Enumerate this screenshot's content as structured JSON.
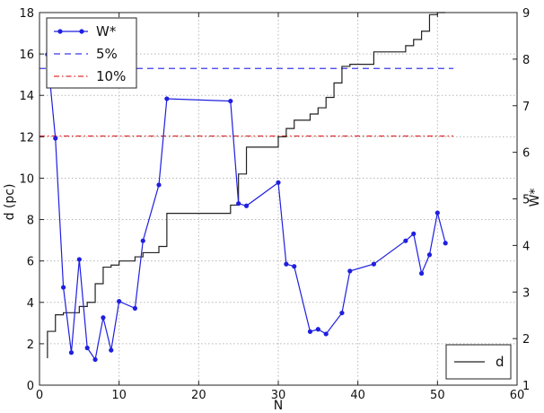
{
  "chart_data": {
    "type": "line",
    "xlabel": "N",
    "ylabel": "d (pc)",
    "y2label": "W*",
    "xlim": [
      0,
      60
    ],
    "ylim": [
      0,
      18
    ],
    "y2lim": [
      1,
      9
    ],
    "xticks": [
      0,
      10,
      20,
      30,
      40,
      50,
      60
    ],
    "yticks": [
      0,
      2,
      4,
      6,
      8,
      10,
      12,
      14,
      16,
      18
    ],
    "y2ticks": [
      1,
      2,
      3,
      4,
      5,
      6,
      7,
      8,
      9
    ],
    "grid": true,
    "series": [
      {
        "name": "W*",
        "axis": "right",
        "style": "line-markers",
        "color": "#1f1fe0",
        "x": [
          1,
          2,
          3,
          4,
          5,
          6,
          7,
          8,
          9,
          10,
          12,
          13,
          15,
          16,
          24,
          25,
          26,
          30,
          31,
          32,
          34,
          35,
          36,
          38,
          39,
          42,
          46,
          47,
          48,
          49,
          50,
          51
        ],
        "y": [
          8.1,
          6.3,
          3.1,
          1.7,
          3.7,
          1.8,
          1.55,
          2.45,
          1.75,
          2.8,
          2.65,
          4.1,
          5.3,
          7.15,
          7.1,
          4.9,
          4.85,
          5.35,
          3.6,
          3.55,
          2.15,
          2.2,
          2.1,
          2.55,
          3.45,
          3.6,
          4.1,
          4.25,
          3.4,
          3.8,
          4.7,
          4.05
        ]
      },
      {
        "name": "5%",
        "axis": "right",
        "style": "dashed",
        "color": "#3b3bea",
        "x": [
          0,
          52
        ],
        "y": [
          7.8,
          7.8
        ]
      },
      {
        "name": "10%",
        "axis": "right",
        "style": "dashdot",
        "color": "#e03030",
        "x": [
          0,
          52
        ],
        "y": [
          6.35,
          6.35
        ]
      },
      {
        "name": "d",
        "axis": "left",
        "style": "step",
        "color": "#222222",
        "x": [
          1,
          1,
          2,
          2,
          3,
          3,
          4,
          4,
          5,
          5,
          6,
          6,
          7,
          7,
          8,
          8,
          9,
          9,
          10,
          10,
          12,
          12,
          13,
          13,
          15,
          15,
          16,
          16,
          24,
          24,
          25,
          25,
          26,
          26,
          30,
          30,
          31,
          31,
          32,
          32,
          34,
          34,
          35,
          35,
          36,
          36,
          37,
          37,
          38,
          38,
          39,
          39,
          42,
          42,
          46,
          46,
          47,
          47,
          48,
          48,
          49,
          49,
          50,
          50,
          51
        ],
        "y": [
          1.3,
          2.6,
          2.6,
          3.4,
          3.4,
          3.5,
          3.5,
          3.5,
          3.5,
          3.8,
          3.8,
          4.0,
          4.0,
          4.9,
          4.9,
          5.7,
          5.7,
          5.8,
          5.8,
          6.0,
          6.0,
          6.2,
          6.2,
          6.4,
          6.4,
          6.7,
          6.7,
          8.3,
          8.3,
          8.7,
          8.7,
          10.2,
          10.2,
          11.5,
          11.5,
          12.0,
          12.0,
          12.4,
          12.4,
          12.8,
          12.8,
          13.1,
          13.1,
          13.4,
          13.4,
          13.9,
          13.9,
          14.6,
          14.6,
          15.4,
          15.4,
          15.5,
          15.5,
          16.1,
          16.1,
          16.4,
          16.4,
          16.7,
          16.7,
          17.1,
          17.1,
          17.9,
          17.9,
          18.0,
          18.0
        ]
      }
    ],
    "legends": [
      {
        "placement": "top-left",
        "entries": [
          "W*",
          "5%",
          "10%"
        ]
      },
      {
        "placement": "bottom-right",
        "entries": [
          "d"
        ]
      }
    ]
  }
}
